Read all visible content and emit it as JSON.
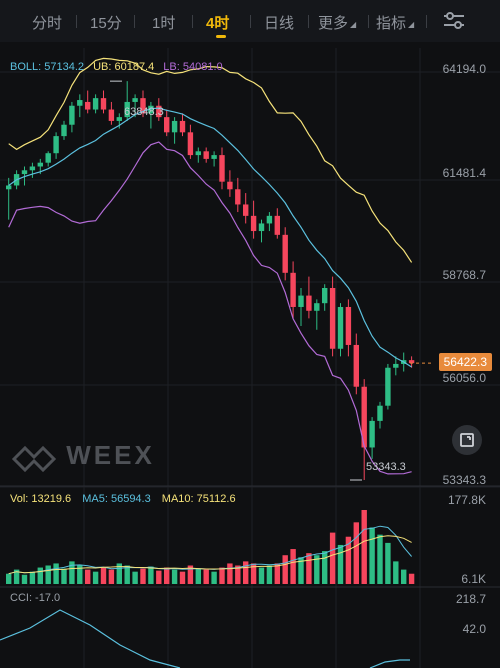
{
  "tabs": [
    {
      "label": "分时"
    },
    {
      "label": "15分"
    },
    {
      "label": "1时"
    },
    {
      "label": "4时",
      "active": true
    },
    {
      "label": "日线"
    },
    {
      "label": "更多"
    },
    {
      "label": "指标"
    }
  ],
  "boll": {
    "label": "BOLL: 57134.2",
    "ub": "UB: 60187.4",
    "lb": "LB: 54081.0"
  },
  "price_axis": [
    "64194.0",
    "61481.4",
    "58768.7",
    "56056.0",
    "53343.3"
  ],
  "current_price": "56422.3",
  "high_label": "63848.3",
  "low_label": "53343.3",
  "watermark": "WEEX",
  "volume": {
    "vol": "Vol: 13219.6",
    "ma5": "MA5: 56594.3",
    "ma10": "MA10: 75112.6",
    "max": "177.8K",
    "min": "6.1K"
  },
  "cci": {
    "label": "CCI: -17.0",
    "top": "218.7",
    "mid": "42.0"
  },
  "colors": {
    "up": "#2ebd85",
    "down": "#f6465d",
    "boll_mid": "#5bc0de",
    "boll_ub": "#f5e27a",
    "boll_lb": "#b26bd6",
    "accent": "#f0b90b"
  },
  "icons": {
    "settings": "sliders-icon",
    "fullscreen": "expand-icon"
  },
  "chart_data": {
    "type": "candlestick",
    "ylim": [
      53343.3,
      64194.0
    ],
    "candles": [
      [
        61000,
        61300,
        60200,
        61100
      ],
      [
        61100,
        61500,
        61000,
        61400
      ],
      [
        61400,
        61600,
        61100,
        61500
      ],
      [
        61500,
        61700,
        61300,
        61600
      ],
      [
        61600,
        61800,
        61400,
        61700
      ],
      [
        61700,
        62000,
        61600,
        61950
      ],
      [
        61950,
        62500,
        61800,
        62400
      ],
      [
        62400,
        62800,
        62300,
        62700
      ],
      [
        62700,
        63300,
        62500,
        63200
      ],
      [
        63200,
        63500,
        62900,
        63350
      ],
      [
        63300,
        63600,
        63000,
        63100
      ],
      [
        63100,
        63500,
        63000,
        63400
      ],
      [
        63400,
        63600,
        63000,
        63100
      ],
      [
        63100,
        63300,
        62700,
        62800
      ],
      [
        62800,
        63000,
        62600,
        62900
      ],
      [
        62900,
        63848,
        62800,
        63300
      ],
      [
        63300,
        63500,
        62900,
        63400
      ],
      [
        63400,
        63600,
        62900,
        63000
      ],
      [
        63000,
        63300,
        62600,
        63200
      ],
      [
        63200,
        63400,
        62800,
        62900
      ],
      [
        62900,
        63100,
        62400,
        62500
      ],
      [
        62500,
        62900,
        62200,
        62800
      ],
      [
        62800,
        63000,
        62400,
        62500
      ],
      [
        62500,
        62700,
        61800,
        61900
      ],
      [
        61900,
        62100,
        61700,
        62000
      ],
      [
        62000,
        62100,
        61700,
        61800
      ],
      [
        61800,
        62000,
        61600,
        61900
      ],
      [
        61900,
        62100,
        61000,
        61200
      ],
      [
        61200,
        61500,
        60800,
        61000
      ],
      [
        61000,
        61300,
        60400,
        60600
      ],
      [
        60600,
        60900,
        60100,
        60300
      ],
      [
        60300,
        60700,
        59700,
        59900
      ],
      [
        59900,
        60200,
        59600,
        60100
      ],
      [
        60100,
        60400,
        59900,
        60300
      ],
      [
        60300,
        60500,
        59700,
        59800
      ],
      [
        59800,
        60000,
        58600,
        58800
      ],
      [
        58800,
        59100,
        57600,
        57900
      ],
      [
        57900,
        58400,
        57400,
        58200
      ],
      [
        58200,
        58700,
        57600,
        57800
      ],
      [
        57800,
        58100,
        57300,
        58000
      ],
      [
        58000,
        58500,
        57800,
        58400
      ],
      [
        58400,
        58700,
        56600,
        56800
      ],
      [
        56800,
        58000,
        56600,
        57900
      ],
      [
        57900,
        58100,
        56600,
        56900
      ],
      [
        56900,
        57200,
        55600,
        55800
      ],
      [
        55800,
        56000,
        53343,
        54200
      ],
      [
        54200,
        55000,
        53900,
        54900
      ],
      [
        54900,
        55400,
        54700,
        55300
      ],
      [
        55300,
        56400,
        55200,
        56300
      ],
      [
        56300,
        56600,
        56100,
        56400
      ],
      [
        56400,
        56700,
        56200,
        56500
      ],
      [
        56500,
        56600,
        56300,
        56420
      ]
    ],
    "volume_range": [
      6.1,
      177.8
    ]
  }
}
